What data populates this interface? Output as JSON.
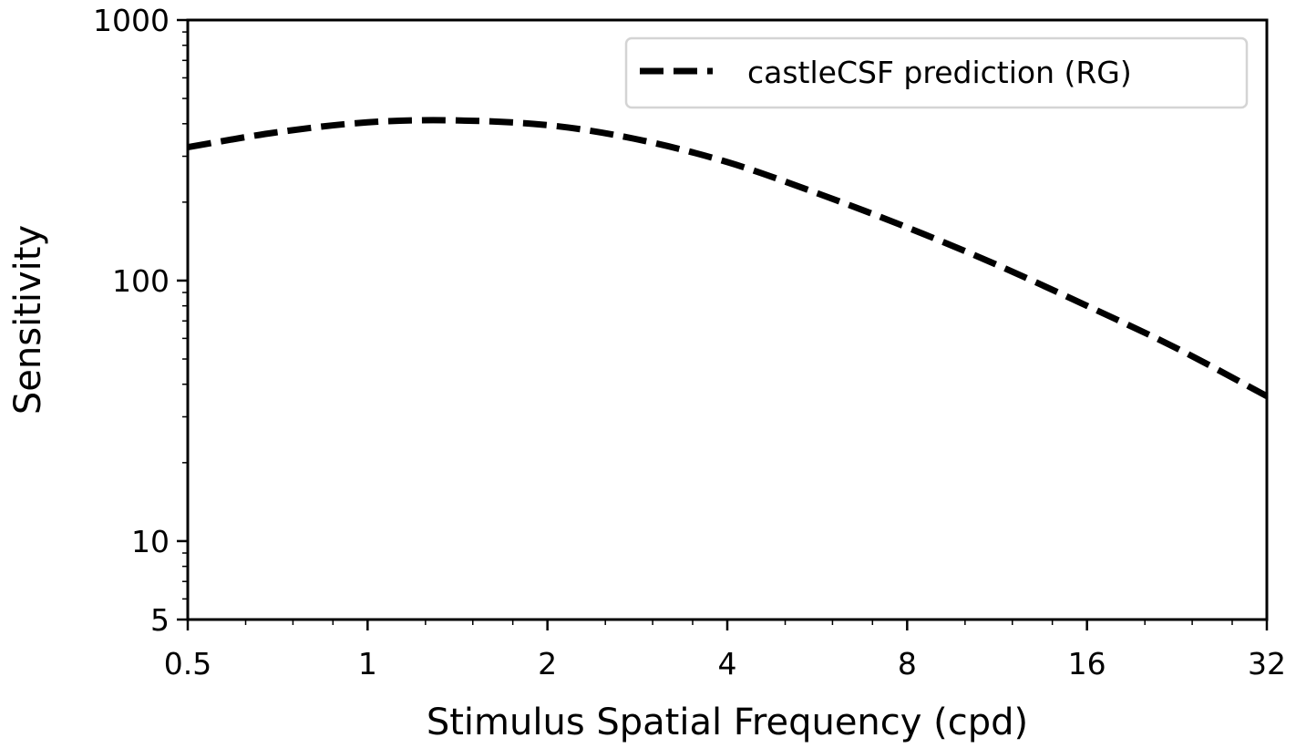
{
  "chart_data": {
    "type": "line",
    "xscale": "log2",
    "yscale": "log10",
    "xlim": [
      0.5,
      32
    ],
    "ylim": [
      5,
      1000
    ],
    "xticks": [
      0.5,
      1,
      2,
      4,
      8,
      16,
      32
    ],
    "xtick_labels": [
      "0.5",
      "1",
      "2",
      "4",
      "8",
      "16",
      "32"
    ],
    "yticks": [
      5,
      10,
      100,
      1000
    ],
    "ytick_labels": [
      "5",
      "10",
      "100",
      "1000"
    ],
    "xlabel": "Stimulus Spatial Frequency (cpd)",
    "ylabel": "Sensitivity",
    "grid": false,
    "legend_position": "top-right",
    "series": [
      {
        "name": "castleCSF prediction (RG)",
        "style": "dashed",
        "color": "#000000",
        "x": [
          0.5,
          0.7,
          1,
          1.4,
          2,
          2.8,
          4,
          5.7,
          8,
          11.3,
          16,
          22.6,
          32
        ],
        "y": [
          325,
          370,
          405,
          412,
          395,
          350,
          285,
          215,
          160,
          115,
          80,
          55,
          36
        ]
      }
    ]
  }
}
